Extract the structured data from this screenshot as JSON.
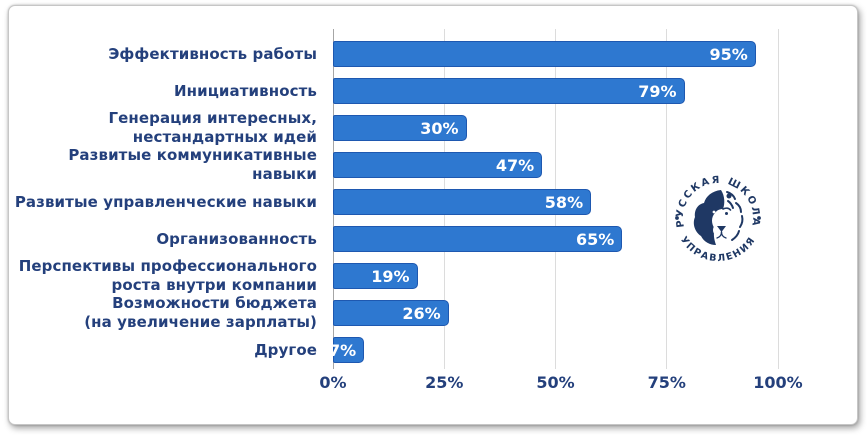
{
  "chart_data": {
    "type": "bar",
    "orientation": "horizontal",
    "categories": [
      "Эффективность работы",
      "Инициативность",
      "Генерация интересных,\nнестандартных идей",
      "Развитые коммуникативные\nнавыки",
      "Развитые управленческие навыки",
      "Организованность",
      "Перспективы профессионального\nроста внутри компании",
      "Возможности бюджета\n(на увеличение зарплаты)",
      "Другое"
    ],
    "values": [
      95,
      79,
      30,
      47,
      58,
      65,
      19,
      26,
      7
    ],
    "value_suffix": "%",
    "x_axis": {
      "range": [
        0,
        100
      ],
      "ticks": [
        {
          "value": 0,
          "label": "0%"
        },
        {
          "value": 25,
          "label": "25%"
        },
        {
          "value": 50,
          "label": "50%"
        },
        {
          "value": 75,
          "label": "75%"
        },
        {
          "value": 100,
          "label": "100%"
        }
      ]
    },
    "grid": true,
    "legend": false,
    "colors": {
      "bar": "#2E78D0",
      "bar_border": "#1E58B0",
      "value_text": "#FFFFFF",
      "category_text": "#24407C",
      "tick_text": "#24407C",
      "gridline": "#DCDCDC",
      "axis_line": "#A6A6A6"
    }
  },
  "logo": {
    "text_top": "РУССКАЯ ШКОЛА",
    "text_bottom": "УПРАВЛЕНИЯ",
    "color": "#1F3864"
  }
}
